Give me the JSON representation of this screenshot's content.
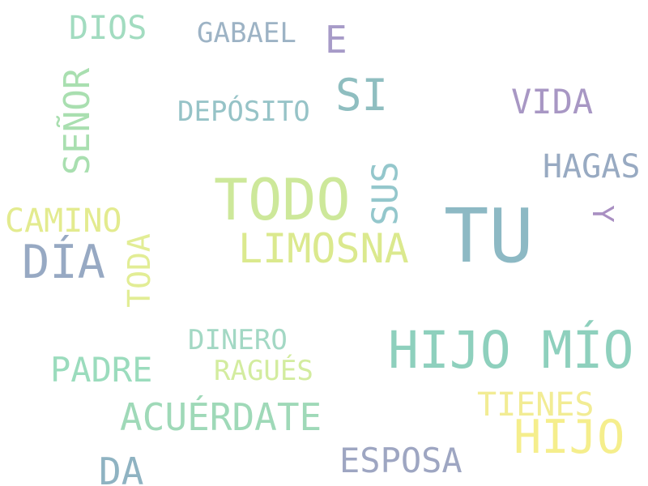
{
  "words": {
    "tu": {
      "text": "TU",
      "color": "#8db9c4"
    },
    "todo": {
      "text": "TODO",
      "color": "#cde89a"
    },
    "hijo_mio": {
      "text": "HIJO MÍO",
      "color": "#8ed0bd"
    },
    "hijo": {
      "text": "HIJO",
      "color": "#f5ee8c"
    },
    "limosna": {
      "text": "LIMOSNA",
      "color": "#dbe98e"
    },
    "dia": {
      "text": "DÍA",
      "color": "#97a9c3"
    },
    "si": {
      "text": "SI",
      "color": "#8fbec0"
    },
    "acuerdate": {
      "text": "ACUÉRDATE",
      "color": "#9fd9b8"
    },
    "vida": {
      "text": "VIDA",
      "color": "#a897c4"
    },
    "hagas": {
      "text": "HAGAS",
      "color": "#98aac2"
    },
    "sus": {
      "text": "SUS",
      "color": "#94c7cc"
    },
    "senor": {
      "text": "SEÑOR",
      "color": "#a9dfb0"
    },
    "camino": {
      "text": "CAMINO",
      "color": "#e3eb8f"
    },
    "padre": {
      "text": "PADRE",
      "color": "#9bdcbd"
    },
    "esposa": {
      "text": "ESPOSA",
      "color": "#9ea6c2"
    },
    "tienes": {
      "text": "TIENES",
      "color": "#f2ec94"
    },
    "da": {
      "text": "DA",
      "color": "#8fb3c2"
    },
    "dios": {
      "text": "DIOS",
      "color": "#a2dcc0"
    },
    "gabael": {
      "text": "GABAEL",
      "color": "#9db3c5"
    },
    "e": {
      "text": "E",
      "color": "#a79bc8"
    },
    "deposito": {
      "text": "DEPÓSITO",
      "color": "#96c3c7"
    },
    "toda": {
      "text": "TODA",
      "color": "#e2ed95"
    },
    "y": {
      "text": "Y",
      "color": "#a98fc2"
    },
    "dinero": {
      "text": "DINERO",
      "color": "#a3d8c4"
    },
    "ragues": {
      "text": "RAGUÉS",
      "color": "#d3ec9f"
    }
  }
}
